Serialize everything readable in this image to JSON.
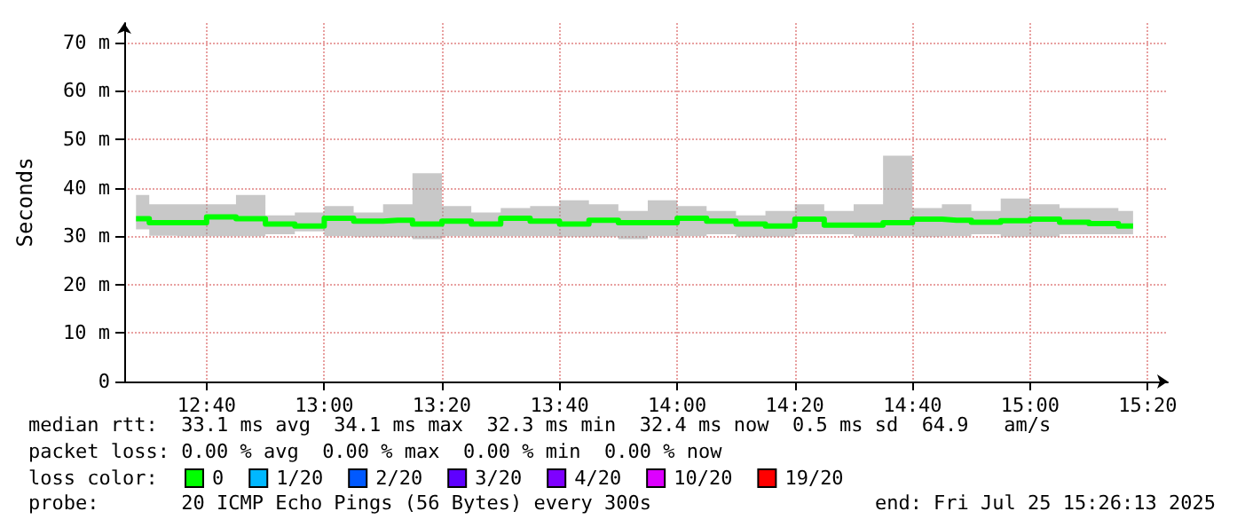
{
  "chart_data": {
    "type": "step",
    "ylabel": "Seconds",
    "legend_title": "loss color:",
    "x": [
      12.4667,
      12.5417,
      12.625,
      12.7083,
      12.7917,
      12.875,
      12.9583,
      13.0417,
      13.125,
      13.2083,
      13.2917,
      13.375,
      13.4583,
      13.5417,
      13.625,
      13.7083,
      13.7917,
      13.875,
      13.9583,
      14.0417,
      14.125,
      14.2083,
      14.2917,
      14.375,
      14.4583,
      14.5417,
      14.625,
      14.7083,
      14.7917,
      14.875,
      14.9583,
      15.0417,
      15.125,
      15.2083,
      15.2917
    ],
    "series": [
      {
        "name": "0",
        "color": "#00ff00",
        "values": [
          33.6,
          32.8,
          32.8,
          34.0,
          33.6,
          32.5,
          32.1,
          33.7,
          33.1,
          33.3,
          32.5,
          33.1,
          32.5,
          33.7,
          33.1,
          32.5,
          33.3,
          32.8,
          32.8,
          33.7,
          33.1,
          32.5,
          32.1,
          33.5,
          32.3,
          32.3,
          32.8,
          33.5,
          33.3,
          32.9,
          33.2,
          33.5,
          32.9,
          32.6,
          32.1
        ],
        "lower": [
          31.4,
          30.1,
          30.0,
          30.0,
          30.0,
          30.4,
          31.0,
          30.0,
          29.9,
          29.9,
          29.4,
          30.0,
          30.0,
          30.0,
          30.0,
          29.9,
          29.9,
          29.4,
          30.0,
          30.0,
          30.4,
          29.9,
          29.9,
          30.4,
          30.4,
          30.0,
          30.0,
          29.9,
          30.0,
          30.4,
          29.9,
          29.9,
          30.4,
          30.4,
          30.4
        ],
        "upper": [
          38.5,
          36.6,
          36.6,
          36.6,
          38.5,
          34.3,
          34.9,
          36.2,
          34.9,
          36.6,
          43.0,
          36.2,
          34.9,
          35.8,
          36.2,
          37.4,
          36.6,
          35.2,
          37.4,
          36.2,
          35.2,
          34.3,
          35.2,
          36.6,
          35.2,
          36.6,
          46.6,
          35.8,
          36.6,
          35.2,
          37.8,
          36.6,
          35.8,
          35.8,
          35.2
        ]
      },
      {
        "name": "1/20",
        "color": "#00b8ff",
        "values": [
          null,
          null,
          null,
          null,
          null,
          null,
          null,
          null,
          null,
          null,
          null,
          null,
          null,
          null,
          null,
          null,
          null,
          null,
          null,
          null,
          null,
          null,
          null,
          null,
          null,
          null,
          null,
          null,
          null,
          null,
          null,
          null,
          null,
          null,
          null
        ]
      },
      {
        "name": "2/20",
        "color": "#0059ff",
        "values": [
          null,
          null,
          null,
          null,
          null,
          null,
          null,
          null,
          null,
          null,
          null,
          null,
          null,
          null,
          null,
          null,
          null,
          null,
          null,
          null,
          null,
          null,
          null,
          null,
          null,
          null,
          null,
          null,
          null,
          null,
          null,
          null,
          null,
          null,
          null
        ]
      },
      {
        "name": "3/20",
        "color": "#5e00ff",
        "values": [
          null,
          null,
          null,
          null,
          null,
          null,
          null,
          null,
          null,
          null,
          null,
          null,
          null,
          null,
          null,
          null,
          null,
          null,
          null,
          null,
          null,
          null,
          null,
          null,
          null,
          null,
          null,
          null,
          null,
          null,
          null,
          null,
          null,
          null,
          null
        ]
      },
      {
        "name": "4/20",
        "color": "#7e00ff",
        "values": [
          null,
          null,
          null,
          null,
          null,
          null,
          null,
          null,
          null,
          null,
          null,
          null,
          null,
          null,
          null,
          null,
          null,
          null,
          null,
          null,
          null,
          null,
          null,
          null,
          null,
          null,
          null,
          null,
          null,
          null,
          null,
          null,
          null,
          null,
          null
        ]
      },
      {
        "name": "10/20",
        "color": "#dd00ff",
        "values": [
          null,
          null,
          null,
          null,
          null,
          null,
          null,
          null,
          null,
          null,
          null,
          null,
          null,
          null,
          null,
          null,
          null,
          null,
          null,
          null,
          null,
          null,
          null,
          null,
          null,
          null,
          null,
          null,
          null,
          null,
          null,
          null,
          null,
          null,
          null
        ]
      },
      {
        "name": "19/20",
        "color": "#ff0000",
        "values": [
          null,
          null,
          null,
          null,
          null,
          null,
          null,
          null,
          null,
          null,
          null,
          null,
          null,
          null,
          null,
          null,
          null,
          null,
          null,
          null,
          null,
          null,
          null,
          null,
          null,
          null,
          null,
          null,
          null,
          null,
          null,
          null,
          null,
          null,
          null
        ]
      }
    ],
    "xlim": [
      12.4333,
      15.39
    ],
    "xticks": [
      {
        "value": 12.6667,
        "label": "12:40"
      },
      {
        "value": 13,
        "label": "13:00"
      },
      {
        "value": 13.3333,
        "label": "13:20"
      },
      {
        "value": 13.6667,
        "label": "13:40"
      },
      {
        "value": 14,
        "label": "14:00"
      },
      {
        "value": 14.3333,
        "label": "14:20"
      },
      {
        "value": 14.6667,
        "label": "14:40"
      },
      {
        "value": 15,
        "label": "15:00"
      },
      {
        "value": 15.3333,
        "label": "15:20"
      }
    ],
    "ylim": [
      0,
      74
    ],
    "yticks": [
      0,
      {
        "value": 10,
        "label": "10 m"
      },
      {
        "value": 20,
        "label": "20 m"
      },
      {
        "value": 30,
        "label": "30 m"
      },
      {
        "value": 40,
        "label": "40 m"
      },
      {
        "value": 50,
        "label": "50 m"
      },
      {
        "value": 60,
        "label": "60 m"
      },
      {
        "value": 70,
        "label": "70 m"
      }
    ],
    "grid": true,
    "legend": "bottom",
    "line_style": "solid",
    "marker": "none",
    "annotations": [
      "median rtt:  33.1 ms avg  34.1 ms max  32.3 ms min  32.4 ms now  0.5 ms sd  64.9   am/s",
      "packet loss: 0.00 % avg  0.00 % max  0.00 % min  0.00 % now",
      "probe:       20 ICMP Echo Pings (56 Bytes) every 300s",
      "end: Fri Jul 25 15:26:13 2025"
    ]
  }
}
